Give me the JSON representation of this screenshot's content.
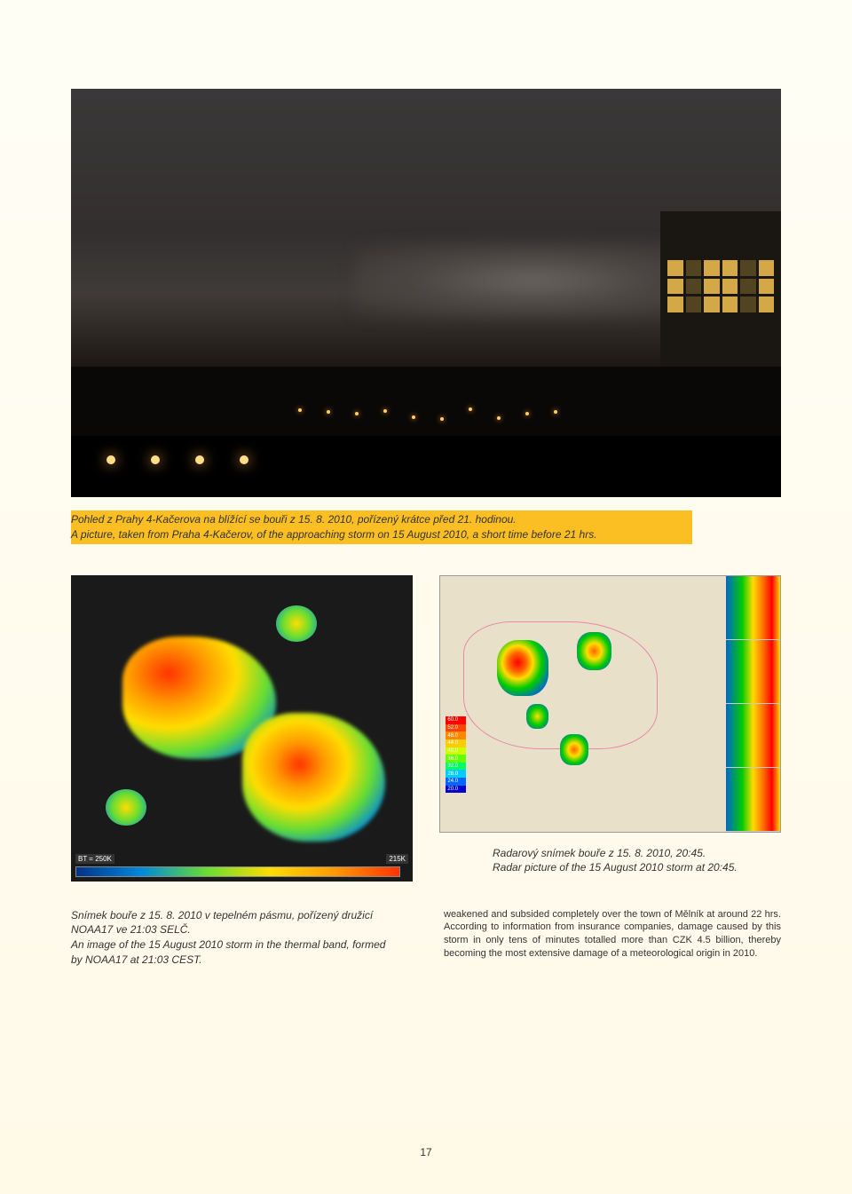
{
  "page_number": "17",
  "main_photo": {
    "caption_cz": "Pohled z Prahy 4-Kačerova na blížící se bouři z 15. 8. 2010, pořízený krátce před 21. hodinou.",
    "caption_en": "A picture, taken from Praha 4-Kačerov, of the approaching storm on 15 August 2010, a short time before 21 hrs.",
    "highlight_color": "#fbbf24"
  },
  "satellite_image": {
    "caption_cz": "Snímek bouře z 15. 8. 2010 v tepelném pásmu, pořízený družicí NOAA17 ve 21:03 SELČ.",
    "caption_en": "An image of the 15 August 2010 storm in the thermal band, formed by NOAA17 at 21:03 CEST.",
    "colorbar_label_left": "BT = 250K",
    "colorbar_label_right": "215K",
    "background_color": "#1a1a1a",
    "colorbar_colors": [
      "#003388",
      "#0088dd",
      "#66dd33",
      "#ffdd00",
      "#ff9900",
      "#ff3300"
    ]
  },
  "radar_image": {
    "caption_cz": "Radarový snímek bouře z 15. 8. 2010, 20:45.",
    "caption_en": "Radar picture of the 15 August 2010 storm at 20:45.",
    "background_color": "#f5f0e0",
    "map_bg_color": "#e8e0c8",
    "border_color": "#e888a8",
    "legend_values": [
      "60.0",
      "52.0",
      "48.0",
      "44.0",
      "40.0",
      "36.0",
      "32.0",
      "28.0",
      "24.0",
      "20.0"
    ],
    "legend_colors": [
      "#ff0000",
      "#ff4400",
      "#ff8800",
      "#ffcc00",
      "#ccff00",
      "#66ff00",
      "#00ff66",
      "#00ccff",
      "#0066ff",
      "#0000cc"
    ]
  },
  "body_text": "weakened and subsided completely over the town of Mělník at around 22 hrs. According to information from insurance companies, damage caused by this storm in only tens of minutes totalled more than CZK 4.5 billion, thereby becoming the most extensive damage of a meteorological origin in 2010.",
  "city_light_positions": [
    5,
    15,
    25,
    35,
    45,
    55,
    65,
    75,
    85,
    95
  ],
  "building_window_count": 18
}
